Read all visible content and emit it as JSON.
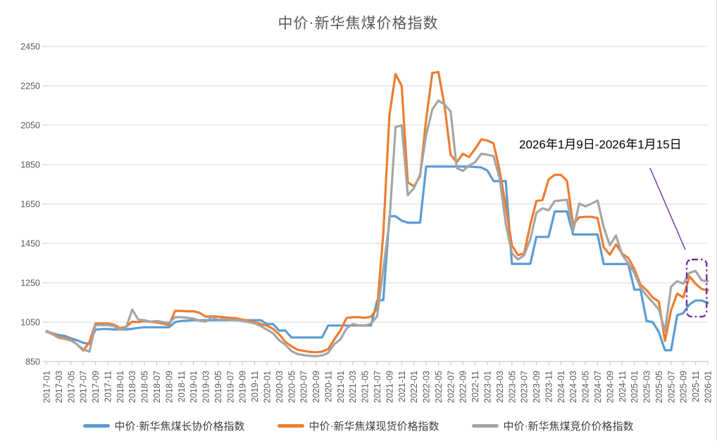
{
  "title": "中价·新华焦煤价格指数",
  "annotation": {
    "label": "2026年1月9日-2026年1月15日",
    "color": "#7030A0"
  },
  "chart_data": {
    "type": "line",
    "title": "中价·新华焦煤价格指数",
    "xlabel": "",
    "ylabel": "",
    "ylim": [
      850,
      2450
    ],
    "y_ticks": [
      2450,
      2250,
      2050,
      1850,
      1650,
      1450,
      1250,
      1050,
      850
    ],
    "grid": "horizontal",
    "legend_position": "bottom",
    "month_count": 109,
    "x_start": "2017-01",
    "x_end": "2026-01",
    "x_labels": [
      "2017-01",
      "2017-03",
      "2017-05",
      "2017-07",
      "2017-09",
      "2017-11",
      "2018-01",
      "2018-03",
      "2018-05",
      "2018-07",
      "2018-09",
      "2018-11",
      "2019-01",
      "2019-03",
      "2019-05",
      "2019-07",
      "2019-09",
      "2019-11",
      "2020-01",
      "2020-03",
      "2020-05",
      "2020-07",
      "2020-09",
      "2020-11",
      "2021-01",
      "2021-03",
      "2021-05",
      "2021-07",
      "2021-09",
      "2021-11",
      "2022-01",
      "2022-03",
      "2022-05",
      "2022-07",
      "2022-09",
      "2022-11",
      "2023-01",
      "2023-03",
      "2023-05",
      "2023-07",
      "2023-09",
      "2023-11",
      "2024-01",
      "2024-03",
      "2024-05",
      "2024-07",
      "2024-09",
      "2024-11",
      "2025-01",
      "2025-03",
      "2025-05",
      "2025-07",
      "2025-09",
      "2025-11",
      "2026-01"
    ],
    "series": [
      {
        "name": "中价·新华焦煤长协价格指数",
        "color": "#5B9BD5",
        "values": [
          1000,
          993,
          985,
          980,
          968,
          958,
          945,
          940,
          1012,
          1015,
          1015,
          1013,
          1013,
          1013,
          1016,
          1021,
          1024,
          1024,
          1024,
          1024,
          1024,
          1050,
          1056,
          1058,
          1060,
          1060,
          1060,
          1060,
          1060,
          1060,
          1060,
          1060,
          1060,
          1060,
          1060,
          1060,
          1040,
          1040,
          1007,
          1007,
          972,
          972,
          972,
          972,
          972,
          972,
          1033,
          1033,
          1033,
          1033,
          1033,
          1033,
          1033,
          1033,
          1160,
          1162,
          1588,
          1588,
          1565,
          1555,
          1555,
          1555,
          1840,
          1840,
          1840,
          1840,
          1840,
          1840,
          1840,
          1840,
          1838,
          1835,
          1820,
          1766,
          1766,
          1766,
          1346,
          1346,
          1346,
          1346,
          1483,
          1483,
          1483,
          1612,
          1612,
          1612,
          1495,
          1495,
          1495,
          1495,
          1495,
          1345,
          1345,
          1345,
          1345,
          1345,
          1215,
          1215,
          1055,
          1050,
          1000,
          907,
          907,
          1085,
          1096,
          1140,
          1160,
          1160,
          1148
        ]
      },
      {
        "name": "中价·新华焦煤现货价格指数",
        "color": "#ED7D31",
        "values": [
          1005,
          992,
          976,
          968,
          962,
          936,
          906,
          948,
          1043,
          1043,
          1043,
          1038,
          1020,
          1026,
          1052,
          1050,
          1055,
          1052,
          1048,
          1042,
          1035,
          1107,
          1107,
          1105,
          1105,
          1097,
          1078,
          1080,
          1078,
          1075,
          1072,
          1070,
          1063,
          1058,
          1050,
          1040,
          1032,
          1016,
          988,
          950,
          928,
          910,
          904,
          899,
          897,
          900,
          913,
          962,
          1008,
          1071,
          1075,
          1075,
          1072,
          1078,
          1120,
          1500,
          2100,
          2310,
          2250,
          1760,
          1740,
          1790,
          2080,
          2315,
          2320,
          2150,
          1900,
          1862,
          1905,
          1888,
          1930,
          1978,
          1972,
          1958,
          1820,
          1640,
          1440,
          1390,
          1400,
          1545,
          1665,
          1670,
          1775,
          1798,
          1798,
          1768,
          1548,
          1582,
          1585,
          1585,
          1578,
          1430,
          1392,
          1445,
          1398,
          1376,
          1320,
          1240,
          1212,
          1175,
          1155,
          955,
          1110,
          1195,
          1175,
          1283,
          1245,
          1218,
          1212
        ]
      },
      {
        "name": "中价·新华焦煤竞价价格指数",
        "color": "#A5A5A5",
        "values": [
          1002,
          988,
          970,
          964,
          956,
          936,
          912,
          900,
          1035,
          1035,
          1035,
          1030,
          1012,
          1022,
          1114,
          1062,
          1060,
          1052,
          1056,
          1050,
          1046,
          1075,
          1075,
          1072,
          1068,
          1058,
          1053,
          1076,
          1062,
          1066,
          1060,
          1062,
          1055,
          1050,
          1044,
          1030,
          1012,
          994,
          958,
          935,
          903,
          888,
          883,
          879,
          877,
          881,
          894,
          938,
          962,
          1018,
          1040,
          1034,
          1032,
          1042,
          1080,
          1320,
          1560,
          2040,
          2050,
          1695,
          1730,
          1800,
          2000,
          2130,
          2175,
          2155,
          2120,
          1832,
          1818,
          1845,
          1862,
          1905,
          1900,
          1893,
          1780,
          1550,
          1400,
          1368,
          1390,
          1470,
          1605,
          1628,
          1618,
          1665,
          1668,
          1672,
          1512,
          1652,
          1638,
          1652,
          1668,
          1530,
          1440,
          1490,
          1392,
          1348,
          1300,
          1225,
          1185,
          1150,
          1115,
          1005,
          1230,
          1258,
          1245,
          1300,
          1310,
          1262,
          1258
        ]
      }
    ],
    "highlight_box": {
      "color": "#7030A0",
      "month_start": 104.55,
      "month_end": 107.8,
      "value_low": 1078,
      "value_high": 1368
    }
  }
}
